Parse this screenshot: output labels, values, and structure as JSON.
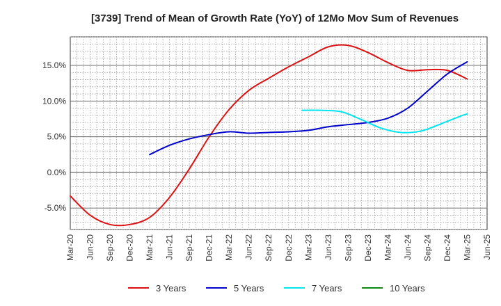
{
  "chart_data": {
    "type": "line",
    "title": "[3739]  Trend of Mean of Growth Rate (YoY) of 12Mo Mov Sum of Revenues",
    "xlabel": "",
    "ylabel": "",
    "ylim": [
      -8.0,
      19.0
    ],
    "y_ticks": [
      -5.0,
      0.0,
      5.0,
      10.0,
      15.0
    ],
    "y_tick_labels": [
      "-5.0%",
      "0.0%",
      "5.0%",
      "10.0%",
      "15.0%"
    ],
    "x_range": [
      0,
      63
    ],
    "x_ticks": [
      0,
      3,
      6,
      9,
      12,
      15,
      18,
      21,
      24,
      27,
      30,
      33,
      36,
      39,
      42,
      45,
      48,
      51,
      54,
      57,
      60,
      63
    ],
    "x_tick_labels": [
      "Mar-20",
      "Jun-20",
      "Sep-20",
      "Dec-20",
      "Mar-21",
      "Jun-21",
      "Sep-21",
      "Dec-21",
      "Mar-22",
      "Jun-22",
      "Sep-22",
      "Dec-22",
      "Mar-23",
      "Jun-23",
      "Sep-23",
      "Dec-23",
      "Mar-24",
      "Jun-24",
      "Sep-24",
      "Dec-24",
      "Mar-25",
      "Jun-25"
    ],
    "grid": true,
    "legend_position": "bottom",
    "series": [
      {
        "name": "3 Years",
        "color": "#dd1111",
        "x": [
          0,
          3,
          6,
          9,
          12,
          15,
          18,
          21,
          24,
          27,
          30,
          33,
          36,
          39,
          42,
          45,
          48,
          51,
          54,
          57,
          60
        ],
        "values": [
          -3.3,
          -6.0,
          -7.3,
          -7.3,
          -6.3,
          -3.5,
          0.5,
          5.0,
          8.8,
          11.5,
          13.2,
          14.8,
          16.2,
          17.6,
          17.8,
          16.8,
          15.4,
          14.3,
          14.4,
          14.3,
          13.1
        ]
      },
      {
        "name": "5 Years",
        "color": "#0000cc",
        "x": [
          12,
          15,
          18,
          21,
          24,
          27,
          30,
          33,
          36,
          39,
          42,
          45,
          48,
          51,
          54,
          57,
          60
        ],
        "values": [
          2.5,
          3.8,
          4.7,
          5.3,
          5.7,
          5.5,
          5.6,
          5.7,
          5.9,
          6.4,
          6.7,
          7.0,
          7.6,
          9.0,
          11.4,
          13.8,
          15.5
        ]
      },
      {
        "name": "7 Years",
        "color": "#00e5ee",
        "x": [
          35,
          38,
          41,
          44,
          47,
          50,
          53,
          56,
          59,
          60
        ],
        "values": [
          8.7,
          8.7,
          8.5,
          7.4,
          6.2,
          5.6,
          5.8,
          6.8,
          7.9,
          8.2
        ]
      },
      {
        "name": "10 Years",
        "color": "#118811",
        "x": [],
        "values": []
      }
    ]
  }
}
